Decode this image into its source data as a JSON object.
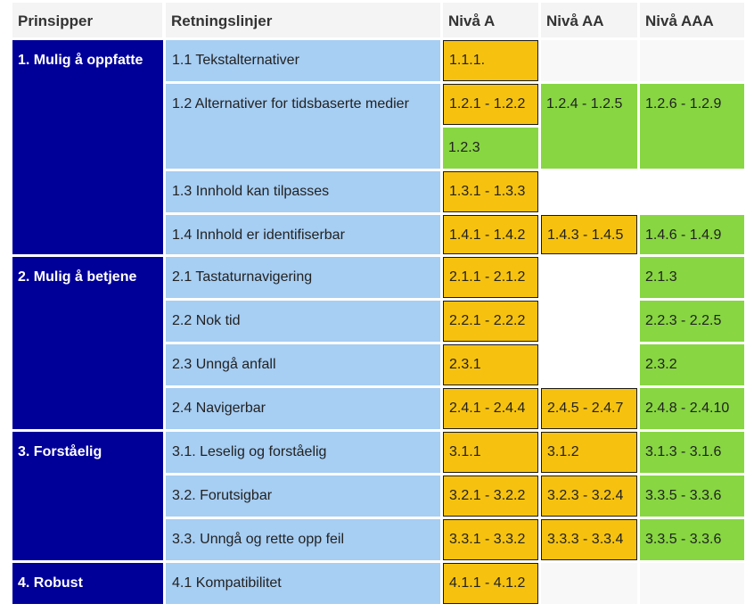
{
  "headers": [
    "Prinsipper",
    "Retningslinjer",
    "Nivå A",
    "Nivå AA",
    "Nivå AAA"
  ],
  "principles": [
    "1. Mulig å oppfatte",
    "2. Mulig å betjene",
    "3. Forståelig",
    "4. Robust"
  ],
  "guidelines": [
    "1.1 Tekstalternativer",
    "1.2 Alternativer for tidsbaserte medier",
    "1.3 Innhold kan tilpasses",
    "1.4 Innhold er identifiserbar",
    "2.1 Tastaturnavigering",
    "2.2 Nok tid",
    "2.3 Unngå anfall",
    "2.4 Navigerbar",
    "3.1. Leselig og forståelig",
    "3.2. Forutsigbar",
    "3.3. Unngå og rette opp feil",
    "4.1 Kompatibilitet"
  ],
  "level_a": [
    "1.1.1.",
    "1.2.1 - 1.2.2",
    "1.2.3",
    "1.3.1 - 1.3.3",
    "1.4.1 - 1.4.2",
    "2.1.1 - 2.1.2",
    "2.2.1 - 2.2.2",
    "2.3.1",
    "2.4.1 - 2.4.4",
    "3.1.1",
    "3.2.1 - 3.2.2",
    "3.3.1 - 3.3.2",
    "4.1.1 - 4.1.2"
  ],
  "level_aa": [
    "1.2.4 - 1.2.5",
    "1.4.3 - 1.4.5",
    "2.4.5 - 2.4.7",
    "3.1.2",
    "3.2.3 - 3.2.4",
    "3.3.3 - 3.3.4"
  ],
  "level_aaa": [
    "1.2.6 - 1.2.9",
    "1.4.6 - 1.4.9",
    "2.1.3",
    "2.2.3 - 2.2.5",
    "2.3.2",
    "2.4.8 - 2.4.10",
    "3.1.3 - 3.1.6",
    "3.3.5 - 3.3.6",
    "3.3.5 - 3.3.6"
  ],
  "colors": {
    "principle_bg": "#000099",
    "guideline_bg": "#a7cef3",
    "level_a_bg": "#f6c20f",
    "green_bg": "#87d642",
    "header_bg": "#f4f4f4"
  }
}
